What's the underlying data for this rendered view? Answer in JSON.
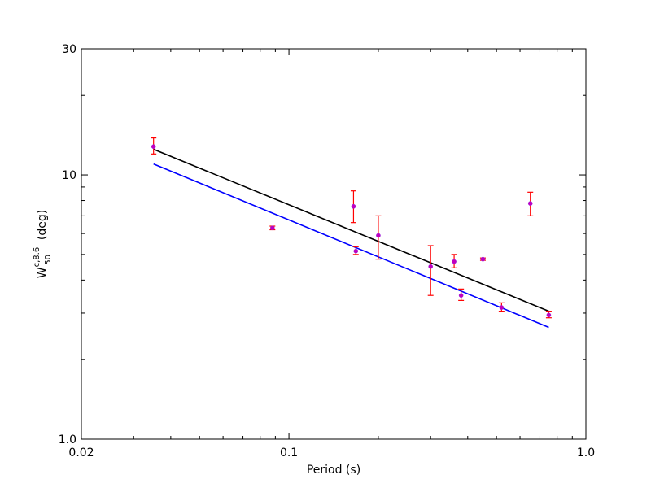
{
  "chart_data": {
    "type": "scatter",
    "title": "",
    "xlabel": "Period (s)",
    "ylabel": {
      "main": "W",
      "superscript": "c,8.6",
      "subscript": "50",
      "unit": "(deg)"
    },
    "xscale": "log",
    "yscale": "log",
    "xlim": [
      0.02,
      1.0
    ],
    "ylim": [
      1.0,
      30
    ],
    "x_ticks": [
      {
        "value": 0.02,
        "label": "0.02"
      },
      {
        "value": 0.1,
        "label": "0.1"
      },
      {
        "value": 1.0,
        "label": "1.0"
      }
    ],
    "y_ticks": [
      {
        "value": 1.0,
        "label": "1.0"
      },
      {
        "value": 10,
        "label": "10"
      },
      {
        "value": 30,
        "label": "30"
      }
    ],
    "grid": false,
    "legend": "none",
    "series": [
      {
        "kind": "errorbar",
        "marker_color": "#c000c0",
        "errorbar_color": "#ff0000",
        "points": [
          {
            "x": 0.035,
            "y": 12.8,
            "ylo": 12.0,
            "yhi": 13.8
          },
          {
            "x": 0.088,
            "y": 6.3,
            "ylo": 6.2,
            "yhi": 6.4
          },
          {
            "x": 0.165,
            "y": 7.6,
            "ylo": 6.6,
            "yhi": 8.7
          },
          {
            "x": 0.168,
            "y": 5.15,
            "ylo": 5.0,
            "yhi": 5.35
          },
          {
            "x": 0.2,
            "y": 5.9,
            "ylo": 4.8,
            "yhi": 7.0
          },
          {
            "x": 0.3,
            "y": 4.5,
            "ylo": 3.5,
            "yhi": 5.4
          },
          {
            "x": 0.36,
            "y": 4.7,
            "ylo": 4.45,
            "yhi": 5.0
          },
          {
            "x": 0.38,
            "y": 3.5,
            "ylo": 3.35,
            "yhi": 3.7
          },
          {
            "x": 0.45,
            "y": 4.8,
            "ylo": 4.75,
            "yhi": 4.85
          },
          {
            "x": 0.52,
            "y": 3.15,
            "ylo": 3.05,
            "yhi": 3.28
          },
          {
            "x": 0.65,
            "y": 7.8,
            "ylo": 7.0,
            "yhi": 8.6
          },
          {
            "x": 0.75,
            "y": 2.95,
            "ylo": 2.88,
            "yhi": 3.05
          }
        ]
      },
      {
        "kind": "line",
        "color": "#000000",
        "points": [
          {
            "x": 0.035,
            "y": 12.5
          },
          {
            "x": 0.75,
            "y": 3.05
          }
        ]
      },
      {
        "kind": "line",
        "color": "#0000ff",
        "points": [
          {
            "x": 0.035,
            "y": 11.0
          },
          {
            "x": 0.75,
            "y": 2.65
          }
        ]
      }
    ]
  }
}
